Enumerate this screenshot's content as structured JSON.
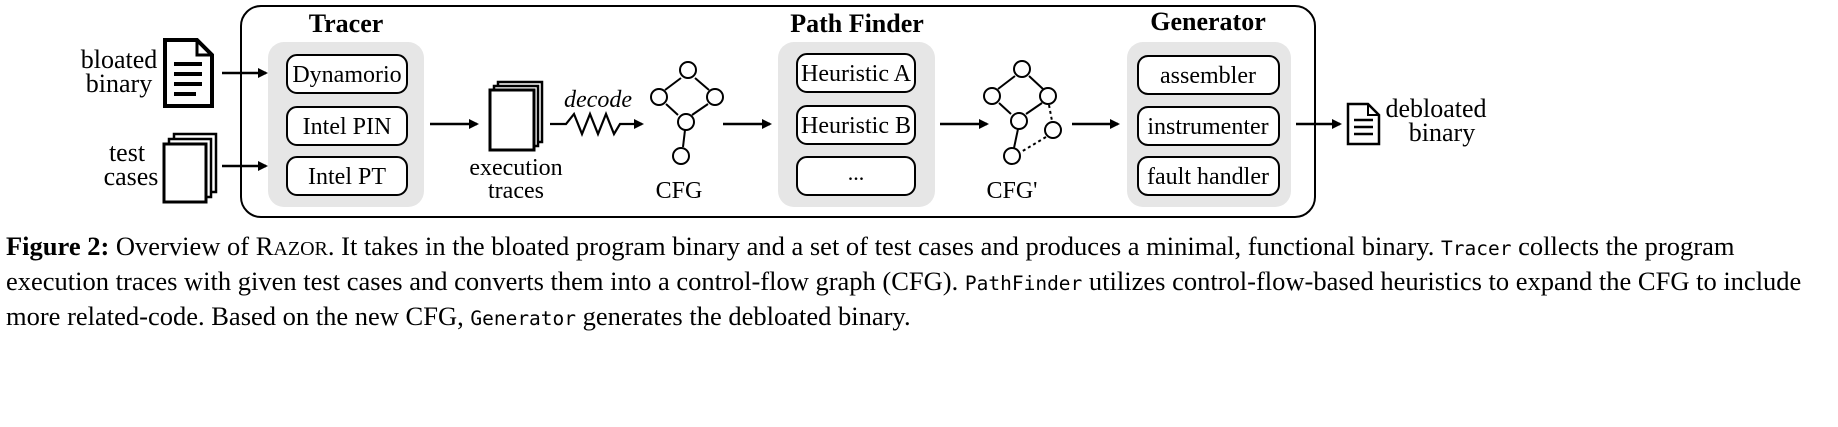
{
  "labels": {
    "bloated_binary": [
      "bloated",
      "binary"
    ],
    "test_cases": [
      "test",
      "cases"
    ],
    "execution_traces": [
      "execution",
      "traces"
    ],
    "decode": "decode",
    "cfg": "CFG",
    "cfg_prime": "CFG'",
    "debloated_binary": [
      "debloated",
      "binary"
    ]
  },
  "stages": {
    "tracer": {
      "title": "Tracer",
      "items": [
        "Dynamorio",
        "Intel PIN",
        "Intel PT"
      ]
    },
    "path_finder": {
      "title": "Path Finder",
      "items": [
        "Heuristic A",
        "Heuristic B",
        "..."
      ]
    },
    "generator": {
      "title": "Generator",
      "items": [
        "assembler",
        "instrumenter",
        "fault handler"
      ]
    }
  },
  "caption": {
    "figure_label": "Figure 2:",
    "part1": "Overview of",
    "razor_first": "R",
    "razor_rest": "AZOR",
    "part2": ". It takes in the bloated program binary and a set of test cases and produces a minimal, functional binary.",
    "tracer_code": "Tracer",
    "part3": "collects the program execution traces with given test cases and converts them into a control-flow graph (CFG).",
    "pathfinder_code": "PathFinder",
    "part4": "utilizes control-flow-based heuristics to expand the CFG to include more related-code. Based on the new CFG,",
    "generator_code": "Generator",
    "part5": "generates the debloated binary."
  }
}
